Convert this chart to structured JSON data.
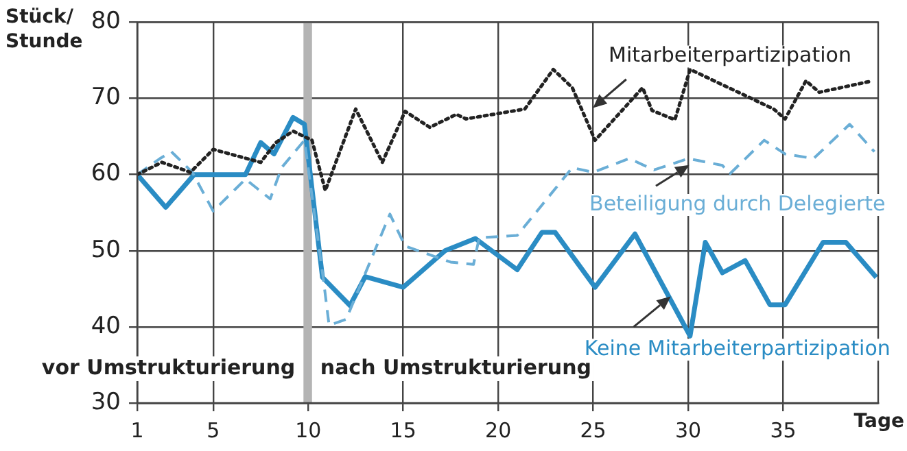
{
  "chart_data": {
    "type": "line",
    "ylabel": "Stück/ Stunde",
    "xlabel": "Tage",
    "xlim": [
      1,
      40
    ],
    "xticks": [
      1,
      5,
      10,
      15,
      20,
      25,
      30,
      35
    ],
    "ylim": [
      30,
      80
    ],
    "yticks": [
      30,
      40,
      50,
      60,
      70,
      80
    ],
    "grid": true,
    "legend": false,
    "marker": "none",
    "bands": [
      {
        "axis": "x",
        "from": 9.75,
        "to": 10.2,
        "color": "#b4b4b4"
      }
    ],
    "annotations": [
      "vor Umstrukturierung",
      "nach Umstrukturierung"
    ],
    "series": [
      {
        "name": "Mitarbeiterpartizipation",
        "color": "#222222",
        "line_style": "dotted",
        "x": [
          1,
          2.3,
          3.8,
          5,
          7.5,
          8.3,
          9.2,
          10.2,
          10.9,
          12.5,
          13.9,
          15.1,
          16.4,
          17.8,
          18.3,
          21.4,
          22.9,
          23.9,
          25.1,
          27.6,
          28.1,
          29.3,
          30.1,
          34.5,
          35.1,
          36.2,
          36.9,
          39.7
        ],
        "values": [
          60,
          61.6,
          60.3,
          63.3,
          61.6,
          64.2,
          65.7,
          64.5,
          57.9,
          68.6,
          61.6,
          68.3,
          66.2,
          67.9,
          67.3,
          68.6,
          73.8,
          71.4,
          64.5,
          71.4,
          68.4,
          67.2,
          73.8,
          68.6,
          67.3,
          72.3,
          70.8,
          72.3
        ]
      },
      {
        "name": "Beteiligung durch Delegierte",
        "color": "#6aaed6",
        "line_style": "dashed",
        "x": [
          1,
          2.2,
          2.8,
          3.9,
          5,
          6.7,
          8,
          8.6,
          9.8,
          10.8,
          11.1,
          12,
          14.3,
          15.1,
          17.5,
          18.7,
          19,
          21,
          23.9,
          25,
          26.9,
          28.2,
          30,
          31.8,
          32.2,
          34,
          35.1,
          36.6,
          38.5,
          39.8
        ],
        "values": [
          60,
          62.1,
          63,
          60.3,
          55.2,
          59.4,
          56.8,
          60.9,
          64.5,
          46.2,
          40.2,
          41,
          54.8,
          50.6,
          48.5,
          48.2,
          51.7,
          52,
          60.9,
          60.3,
          62.1,
          60.6,
          62.1,
          61.2,
          60.1,
          64.5,
          62.7,
          62.1,
          66.6,
          63
        ]
      },
      {
        "name": "Keine Mitarbeiterpartizipation",
        "color": "#2a8cc4",
        "line_style": "solid",
        "x": [
          1,
          2.5,
          4,
          6.7,
          7.5,
          8.2,
          9.2,
          9.8,
          10.75,
          12.2,
          13,
          15,
          17.2,
          18.8,
          21,
          22.3,
          23,
          25.1,
          27.2,
          30.1,
          30.9,
          31.8,
          33,
          34.3,
          35.1,
          37.1,
          38.3,
          39.9
        ],
        "values": [
          60,
          55.7,
          60,
          60,
          64.2,
          62.7,
          67.5,
          66.6,
          46.5,
          42.8,
          46.6,
          45.2,
          50,
          51.6,
          47.5,
          52.4,
          52.4,
          45.2,
          52.2,
          38.8,
          51.1,
          47.1,
          48.7,
          42.9,
          42.9,
          51.1,
          51.1,
          46.5
        ]
      }
    ]
  }
}
